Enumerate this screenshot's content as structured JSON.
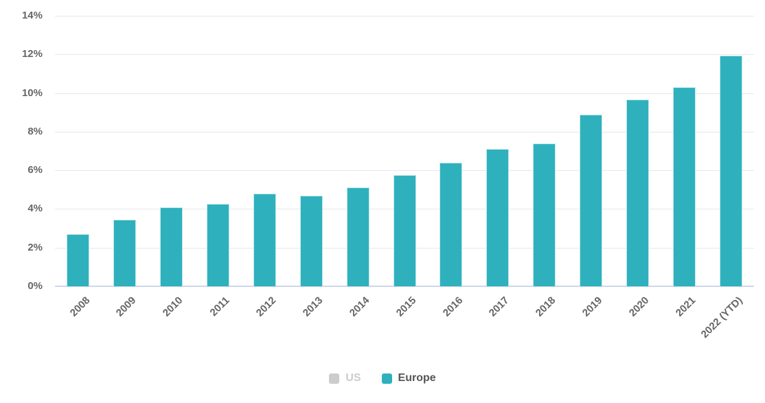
{
  "chart_data": {
    "type": "bar",
    "title": "",
    "xlabel": "",
    "ylabel": "",
    "categories": [
      "2008",
      "2009",
      "2010",
      "2011",
      "2012",
      "2013",
      "2014",
      "2015",
      "2016",
      "2017",
      "2018",
      "2019",
      "2020",
      "2021",
      "2022 (YTD)"
    ],
    "series": [
      {
        "name": "US",
        "color": "#cccccc",
        "visible": false,
        "values": []
      },
      {
        "name": "Europe",
        "color": "#2fb1bd",
        "visible": true,
        "values": [
          2.7,
          3.45,
          4.1,
          4.25,
          4.8,
          4.7,
          5.1,
          5.75,
          6.4,
          7.1,
          7.4,
          8.9,
          9.65,
          10.3,
          11.95
        ]
      }
    ],
    "ylim": [
      0,
      14
    ],
    "ytick_step": 2,
    "ytick_suffix": "%",
    "ytick_labels": [
      "0%",
      "2%",
      "4%",
      "6%",
      "8%",
      "10%",
      "12%",
      "14%"
    ],
    "grid": true,
    "legend_position": "bottom"
  },
  "legend": {
    "items": [
      {
        "label": "US",
        "swatch_color": "#cccccc",
        "label_color": "#cccccc",
        "disabled": true
      },
      {
        "label": "Europe",
        "swatch_color": "#2fb1bd",
        "label_color": "#555555",
        "disabled": false
      }
    ]
  },
  "colors": {
    "bar_fill": "#2fb1bd",
    "bar_border": "#bfe9ed",
    "gridline": "#e7e7e7",
    "axis_line": "#ccd6eb",
    "axis_label": "#666666",
    "background": "#ffffff"
  }
}
